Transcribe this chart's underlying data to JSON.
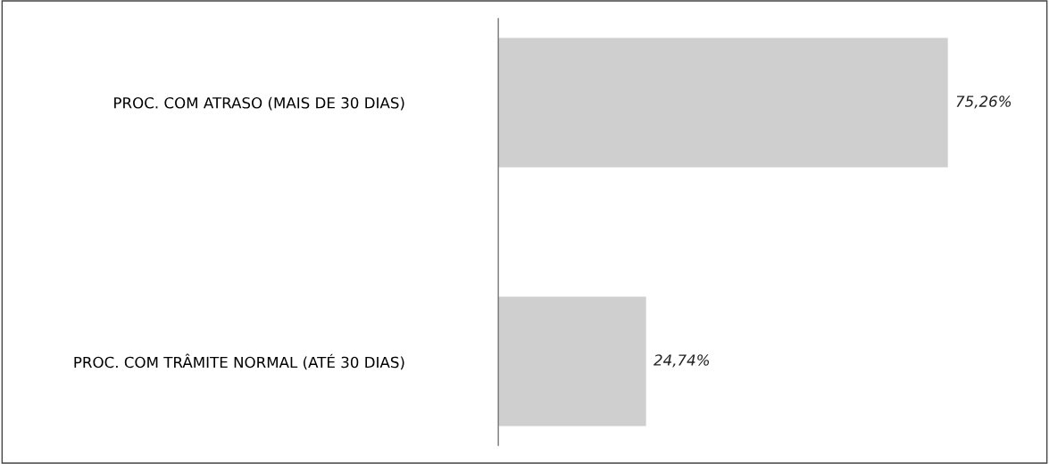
{
  "chart_data": {
    "type": "bar",
    "orientation": "horizontal",
    "categories": [
      "PROC. COM ATRASO (MAIS DE 30 DIAS)",
      "PROC. COM TRÂMITE NORMAL (ATÉ 30 DIAS)"
    ],
    "values": [
      75.26,
      24.74
    ],
    "color": "#cfcfcf",
    "value_labels": [
      "75,26%",
      "24,74%"
    ],
    "grid": false,
    "legend": false,
    "tick_labels": "y"
  }
}
